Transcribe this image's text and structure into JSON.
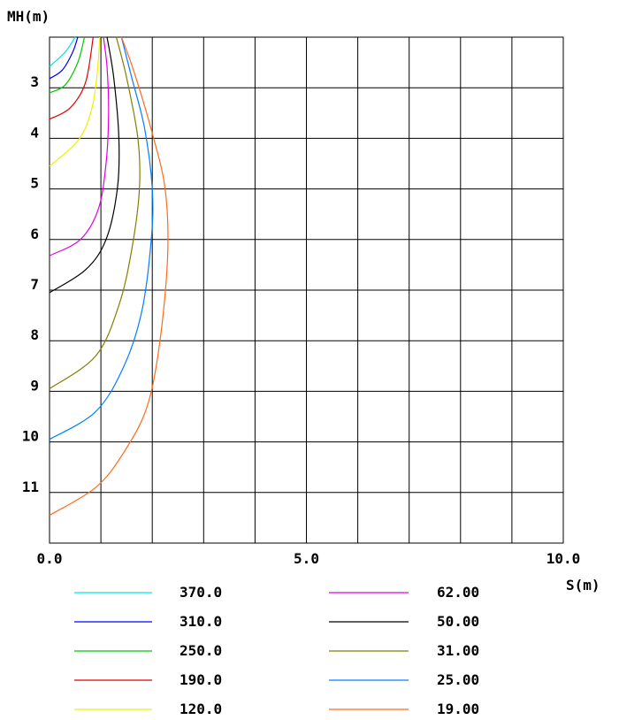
{
  "chart_data": {
    "type": "line",
    "xlabel": "S(m)",
    "ylabel": "MH(m)",
    "xlim": [
      0,
      10
    ],
    "ylim": [
      2,
      12
    ],
    "y_inverted": true,
    "grid": true,
    "x_tick_labels": [
      "0.0",
      "5.0",
      "10.0"
    ],
    "y_tick_labels": [
      "3",
      "4",
      "5",
      "6",
      "7",
      "8",
      "9",
      "10",
      "11"
    ],
    "series": [
      {
        "name": "370.0",
        "color": "#00e5e5",
        "points": [
          [
            0,
            2.58
          ],
          [
            0.3,
            2.3
          ],
          [
            0.5,
            2.0
          ]
        ]
      },
      {
        "name": "310.0",
        "color": "#0000ff",
        "points": [
          [
            0,
            2.82
          ],
          [
            0.25,
            2.65
          ],
          [
            0.45,
            2.3
          ],
          [
            0.55,
            2.0
          ]
        ]
      },
      {
        "name": "250.0",
        "color": "#00c800",
        "points": [
          [
            0,
            3.1
          ],
          [
            0.3,
            2.95
          ],
          [
            0.55,
            2.5
          ],
          [
            0.68,
            2.0
          ]
        ]
      },
      {
        "name": "190.0",
        "color": "#e00000",
        "points": [
          [
            0,
            3.62
          ],
          [
            0.4,
            3.4
          ],
          [
            0.7,
            2.9
          ],
          [
            0.85,
            2.0
          ]
        ]
      },
      {
        "name": "120.0",
        "color": "#f0f000",
        "points": [
          [
            0,
            4.55
          ],
          [
            0.55,
            4.05
          ],
          [
            0.8,
            3.5
          ],
          [
            0.92,
            2.8
          ],
          [
            0.98,
            2.0
          ]
        ]
      },
      {
        "name": "62.00",
        "color": "#e000e0",
        "points": [
          [
            0,
            6.32
          ],
          [
            0.6,
            6.0
          ],
          [
            0.95,
            5.4
          ],
          [
            1.1,
            4.5
          ],
          [
            1.15,
            3.5
          ],
          [
            1.12,
            2.6
          ],
          [
            1.05,
            2.0
          ]
        ]
      },
      {
        "name": "50.00",
        "color": "#000000",
        "points": [
          [
            0,
            7.05
          ],
          [
            0.7,
            6.6
          ],
          [
            1.1,
            6.0
          ],
          [
            1.32,
            5.0
          ],
          [
            1.35,
            4.0
          ],
          [
            1.25,
            2.8
          ],
          [
            1.12,
            2.0
          ]
        ]
      },
      {
        "name": "31.00",
        "color": "#808000",
        "points": [
          [
            0,
            8.95
          ],
          [
            0.9,
            8.3
          ],
          [
            1.35,
            7.3
          ],
          [
            1.6,
            6.2
          ],
          [
            1.75,
            5.0
          ],
          [
            1.72,
            4.0
          ],
          [
            1.5,
            2.8
          ],
          [
            1.3,
            2.0
          ]
        ]
      },
      {
        "name": "25.00",
        "color": "#0080ff",
        "points": [
          [
            0,
            9.95
          ],
          [
            0.9,
            9.4
          ],
          [
            1.45,
            8.5
          ],
          [
            1.8,
            7.4
          ],
          [
            1.98,
            6.0
          ],
          [
            2.0,
            5.0
          ],
          [
            1.85,
            3.8
          ],
          [
            1.6,
            2.8
          ],
          [
            1.4,
            2.0
          ]
        ]
      },
      {
        "name": "19.00",
        "color": "#ff6a1a",
        "points": [
          [
            0,
            11.45
          ],
          [
            0.9,
            10.9
          ],
          [
            1.45,
            10.2
          ],
          [
            1.9,
            9.3
          ],
          [
            2.15,
            8.0
          ],
          [
            2.3,
            6.3
          ],
          [
            2.25,
            5.0
          ],
          [
            2.0,
            3.9
          ],
          [
            1.65,
            2.7
          ],
          [
            1.4,
            2.0
          ]
        ]
      }
    ]
  }
}
